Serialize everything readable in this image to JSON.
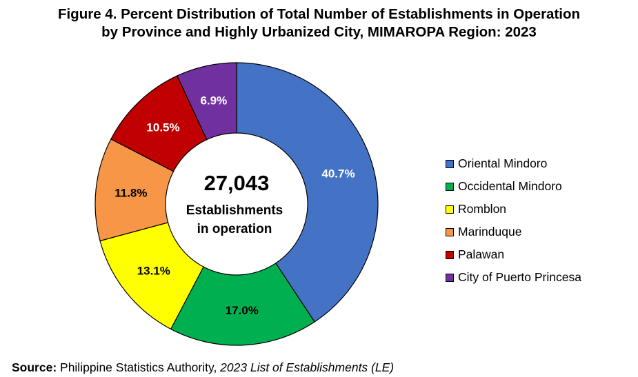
{
  "title_line1": "Figure 4. Percent Distribution of Total Number of Establishments in Operation",
  "title_line2": "by Province and Highly Urbanized City, MIMAROPA Region: 2023",
  "source_label": "Source:",
  "source_text": " Philippine Statistics Authority, ",
  "source_italic": "2023 List of Establishments (LE)",
  "chart_data": {
    "type": "pie",
    "variant": "donut",
    "title": "Figure 4. Percent Distribution of Total Number of Establishments in Operation by Province and Highly Urbanized City, MIMAROPA Region: 2023",
    "center_total": "27,043",
    "center_caption_line1": "Establishments",
    "center_caption_line2": "in operation",
    "legend_position": "right",
    "slices": [
      {
        "name": "Oriental Mindoro",
        "value": 40.7,
        "label": "40.7%",
        "color": "#4472C4",
        "label_color": "#FFFFFF"
      },
      {
        "name": "Occidental Mindoro",
        "value": 17.0,
        "label": "17.0%",
        "color": "#00B050",
        "label_color": "#000000"
      },
      {
        "name": "Romblon",
        "value": 13.1,
        "label": "13.1%",
        "color": "#FFFF00",
        "label_color": "#000000"
      },
      {
        "name": "Marinduque",
        "value": 11.8,
        "label": "11.8%",
        "color": "#F79646",
        "label_color": "#000000"
      },
      {
        "name": "Palawan",
        "value": 10.5,
        "label": "10.5%",
        "color": "#C00000",
        "label_color": "#FFFFFF"
      },
      {
        "name": "City of Puerto Princesa",
        "value": 6.9,
        "label": "6.9%",
        "color": "#7030A0",
        "label_color": "#FFFFFF"
      }
    ]
  }
}
